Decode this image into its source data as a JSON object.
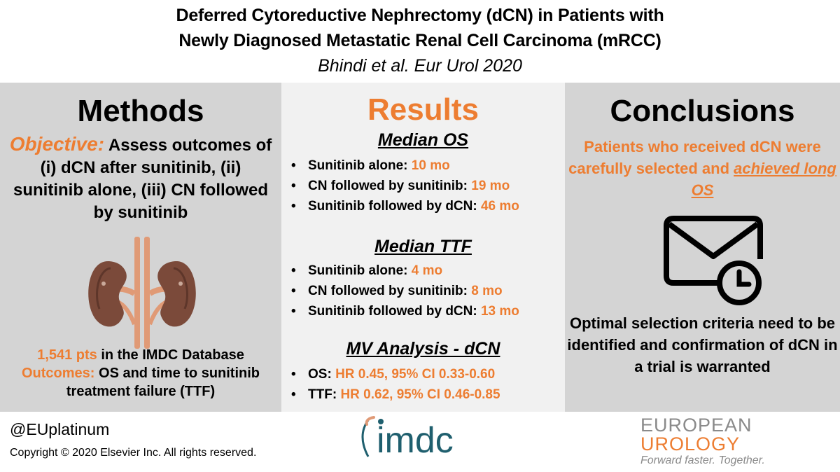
{
  "header": {
    "title_line1": "Deferred Cytoreductive Nephrectomy (dCN) in Patients with",
    "title_line2": "Newly Diagnosed Metastatic Renal Cell Carcinoma (mRCC)",
    "citation": "Bhindi et al. Eur Urol 2020"
  },
  "methods": {
    "heading": "Methods",
    "objective_label": "Objective:",
    "objective_text": " Assess outcomes of (i) dCN after sunitinib, (ii) sunitinib alone, (iii) CN followed by sunitinib",
    "kidney_icon": "kidneys-icon",
    "pts_highlight": "1,541 pts",
    "pts_text": " in the IMDC Database",
    "outcomes_label": "Outcomes:",
    "outcomes_text": " OS and time to sunitinib treatment failure (TTF)"
  },
  "results": {
    "heading": "Results",
    "sections": [
      {
        "title": "Median OS",
        "items": [
          {
            "label": "Sunitinib alone: ",
            "value": "10 mo"
          },
          {
            "label": "CN followed by sunitinib: ",
            "value": "19 mo"
          },
          {
            "label": "Sunitinib followed by dCN: ",
            "value": "46 mo"
          }
        ]
      },
      {
        "title": "Median TTF",
        "items": [
          {
            "label": "Sunitinib alone: ",
            "value": "4 mo"
          },
          {
            "label": "CN followed by sunitinib: ",
            "value": "8 mo"
          },
          {
            "label": "Sunitinib followed by dCN: ",
            "value": "13 mo"
          }
        ]
      },
      {
        "title": "MV Analysis - dCN",
        "items": [
          {
            "label": "OS: ",
            "value": "HR 0.45, 95% CI 0.33-0.60"
          },
          {
            "label": "TTF: ",
            "value": "HR 0.62, 95% CI 0.46-0.85"
          }
        ]
      }
    ],
    "bullet": "•"
  },
  "conclusions": {
    "heading": "Conclusions",
    "text1_a": "Patients who received dCN were carefully selected and ",
    "text1_u": "achieved long OS",
    "envelope_icon": "envelope-clock-icon",
    "text2": "Optimal selection criteria need to be identified and confirmation of dCN in a trial is warranted"
  },
  "footer": {
    "handle": "@EUplatinum",
    "copyright": "Copyright © 2020 Elsevier Inc. All rights reserved.",
    "imdc_logo_text": "imdc",
    "eu_line1": "EUROPEAN",
    "eu_line2": "UROLOGY",
    "eu_tagline": "Forward faster. Together."
  },
  "colors": {
    "accent": "#ed7d31",
    "panel_dark": "#d4d4d4",
    "panel_light": "#f1f1f1",
    "kidney_brown": "#7b4a3a",
    "vessel": "#e09a76",
    "imdc_teal": "#1f5f6e"
  }
}
